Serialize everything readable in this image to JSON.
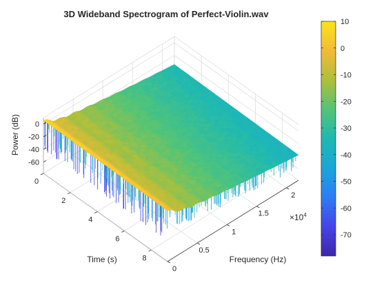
{
  "chart_data": {
    "type": "surface",
    "title": "3D Wideband Spectrogram of Perfect-Violin.wav",
    "zlabel": "Power (dB)",
    "xlabel": "Time (s)",
    "ylabel": "Frequency (Hz)",
    "time_ticks": [
      "0",
      "2",
      "4",
      "6",
      "8"
    ],
    "time_range": [
      0,
      9.2
    ],
    "freq_ticks": [
      "0",
      "0.5",
      "1",
      "1.5",
      "2"
    ],
    "freq_range": [
      0,
      22050
    ],
    "freq_exponent_base": "×10",
    "freq_exponent_power": "4",
    "power_ticks": [
      "0",
      "-20",
      "-40",
      "-60"
    ],
    "power_range": [
      -78,
      10
    ],
    "colorbar": {
      "ticks": [
        "10",
        "0",
        "-10",
        "-20",
        "-30",
        "-40",
        "-50",
        "-60",
        "-70"
      ],
      "range": [
        -78,
        10
      ],
      "colormap": [
        "#3e26a8",
        "#4744e8",
        "#2d7cf6",
        "#1aa6d9",
        "#1eb9b1",
        "#52c476",
        "#aebf3a",
        "#f3ba38",
        "#f9e419"
      ]
    },
    "grid": true
  }
}
